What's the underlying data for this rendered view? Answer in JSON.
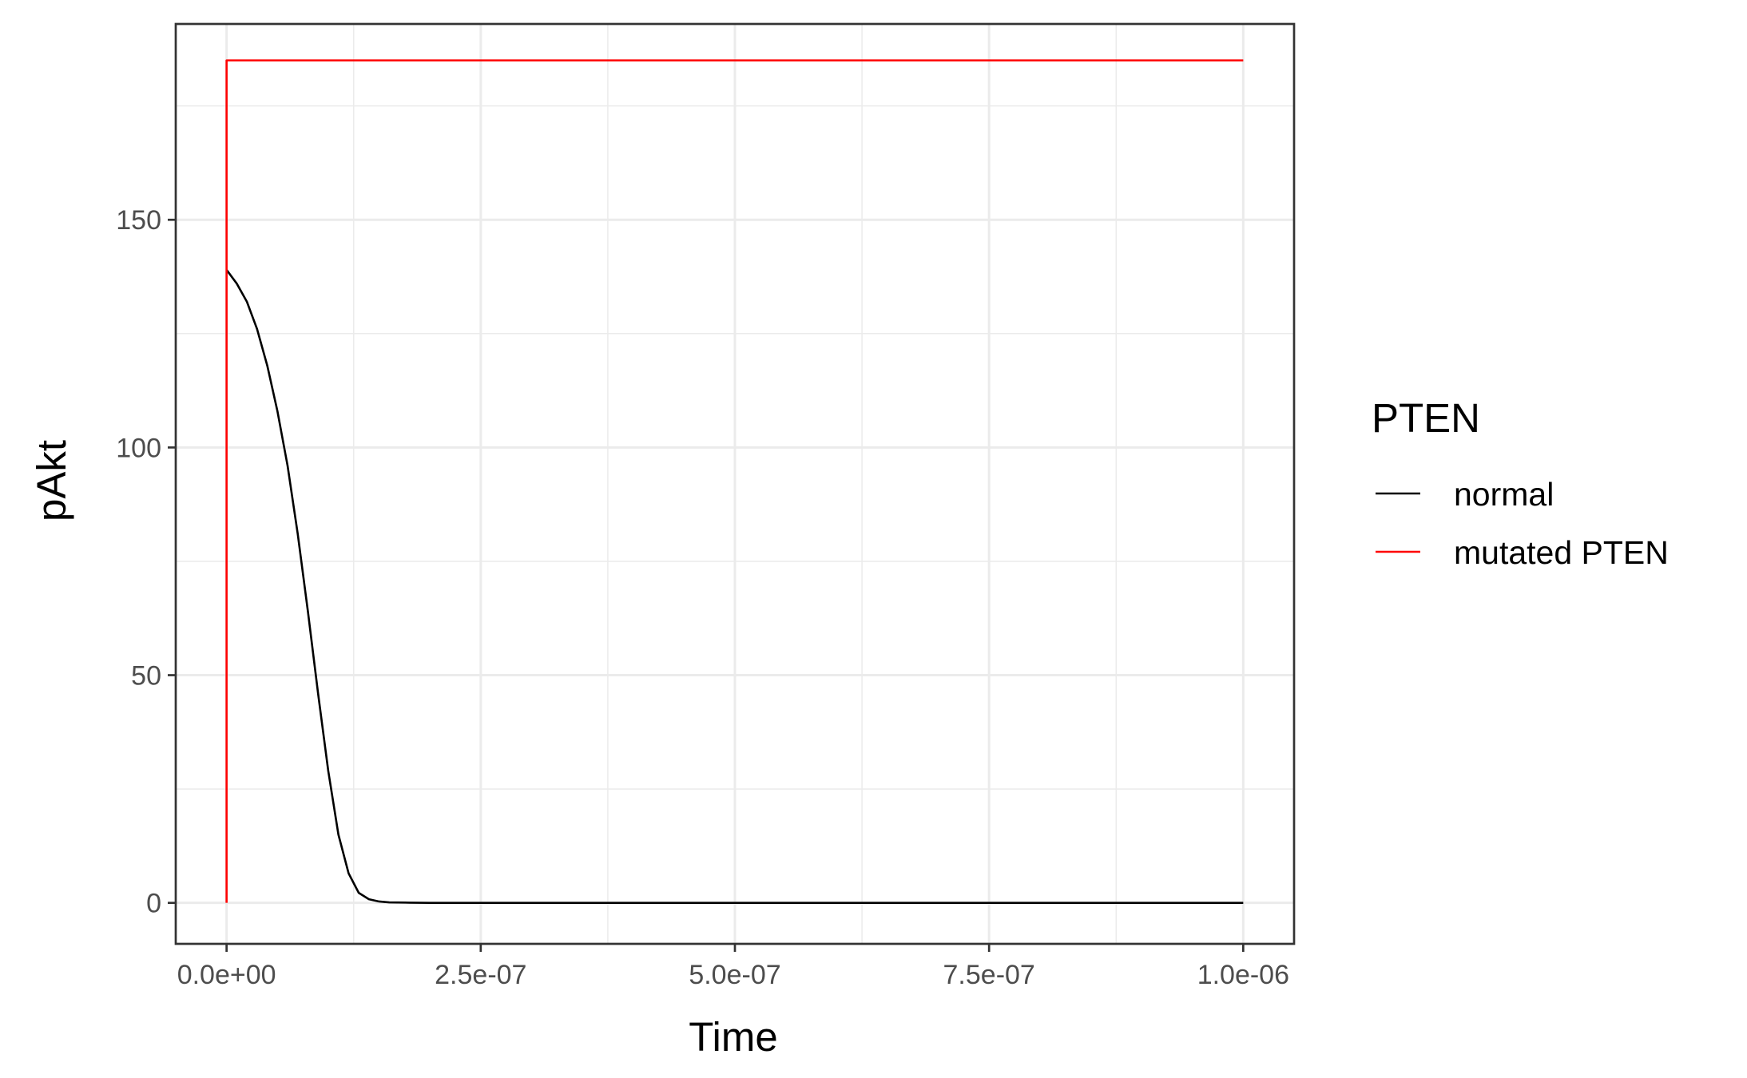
{
  "chart_data": {
    "type": "line",
    "title": "",
    "xlabel": "Time",
    "ylabel": "pAkt",
    "xlim": [
      -5e-08,
      1.05e-06
    ],
    "ylim": [
      -9,
      193
    ],
    "x_ticks": [
      0,
      2.5e-07,
      5e-07,
      7.5e-07,
      1e-06
    ],
    "x_tick_labels": [
      "0.0e+00",
      "2.5e-07",
      "5.0e-07",
      "7.5e-07",
      "1.0e-06"
    ],
    "y_ticks": [
      0,
      50,
      100,
      150
    ],
    "y_tick_labels": [
      "0",
      "50",
      "100",
      "150"
    ],
    "grid": true,
    "legend": {
      "title": "PTEN",
      "placement": "right",
      "entries": [
        {
          "label": "normal",
          "color": "#000000"
        },
        {
          "label": "mutated PTEN",
          "color": "#ff0000"
        }
      ]
    },
    "series": [
      {
        "name": "normal",
        "color": "#000000",
        "x": [
          0,
          1e-08,
          2e-08,
          3e-08,
          4e-08,
          5e-08,
          6e-08,
          7e-08,
          8e-08,
          9e-08,
          1e-07,
          1.1e-07,
          1.2e-07,
          1.3e-07,
          1.4e-07,
          1.5e-07,
          1.6e-07,
          1.8e-07,
          2e-07,
          3e-07,
          5e-07,
          7.5e-07,
          1e-06
        ],
        "y": [
          139,
          136,
          132,
          126,
          118,
          108,
          96,
          81,
          64,
          46,
          29,
          15,
          6.5,
          2.2,
          0.8,
          0.3,
          0.1,
          0.05,
          0,
          0,
          0,
          0,
          0
        ]
      },
      {
        "name": "mutated PTEN",
        "color": "#ff0000",
        "x": [
          0,
          0,
          1e-06
        ],
        "y": [
          0,
          185,
          185
        ]
      }
    ]
  }
}
